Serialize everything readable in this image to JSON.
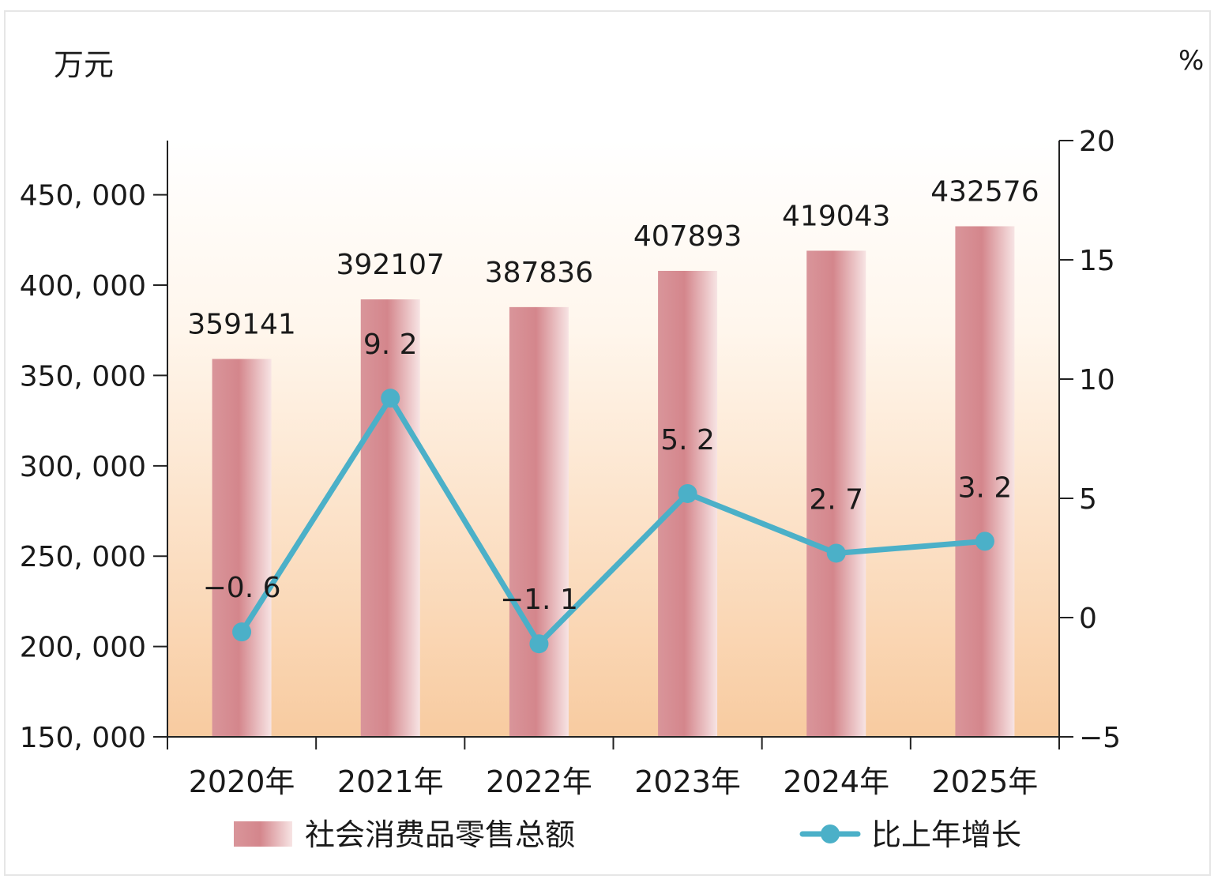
{
  "chart_data": {
    "type": "bar",
    "categories": [
      "2020年",
      "2021年",
      "2022年",
      "2023年",
      "2024年",
      "2025年"
    ],
    "series": [
      {
        "name": "社会消费品零售总额",
        "type": "bar",
        "axis": "left",
        "values": [
          359141,
          392107,
          387836,
          407893,
          419043,
          432576
        ],
        "labels": [
          "359141",
          "392107",
          "387836",
          "407893",
          "419043",
          "432576"
        ]
      },
      {
        "name": "比上年增长",
        "type": "line",
        "axis": "right",
        "values": [
          -0.6,
          9.2,
          -1.1,
          5.2,
          2.7,
          3.2
        ],
        "labels": [
          "−0. 6",
          "9. 2",
          "−1. 1",
          "5. 2",
          "2. 7",
          "3. 2"
        ]
      }
    ],
    "y_left": {
      "unit": "万元",
      "min": 150000,
      "max": 480000,
      "ticks": [
        150000,
        200000,
        250000,
        300000,
        350000,
        400000,
        450000
      ],
      "tick_labels": [
        "150, 000",
        "200, 000",
        "250, 000",
        "300, 000",
        "350, 000",
        "400, 000",
        "450, 000"
      ]
    },
    "y_right": {
      "unit": "%",
      "min": -5,
      "max": 20,
      "ticks": [
        -5,
        0,
        5,
        10,
        15,
        20
      ],
      "tick_labels": [
        "−5",
        "0",
        "5",
        "10",
        "15",
        "20"
      ]
    },
    "grid": false,
    "legend": "bottom",
    "colors": {
      "bar": "#d4868c",
      "bar_light": "#f5dadb",
      "line": "#4bb0c8",
      "background_top": "#fffaf4",
      "background_bottom": "#f9cfa5"
    }
  }
}
